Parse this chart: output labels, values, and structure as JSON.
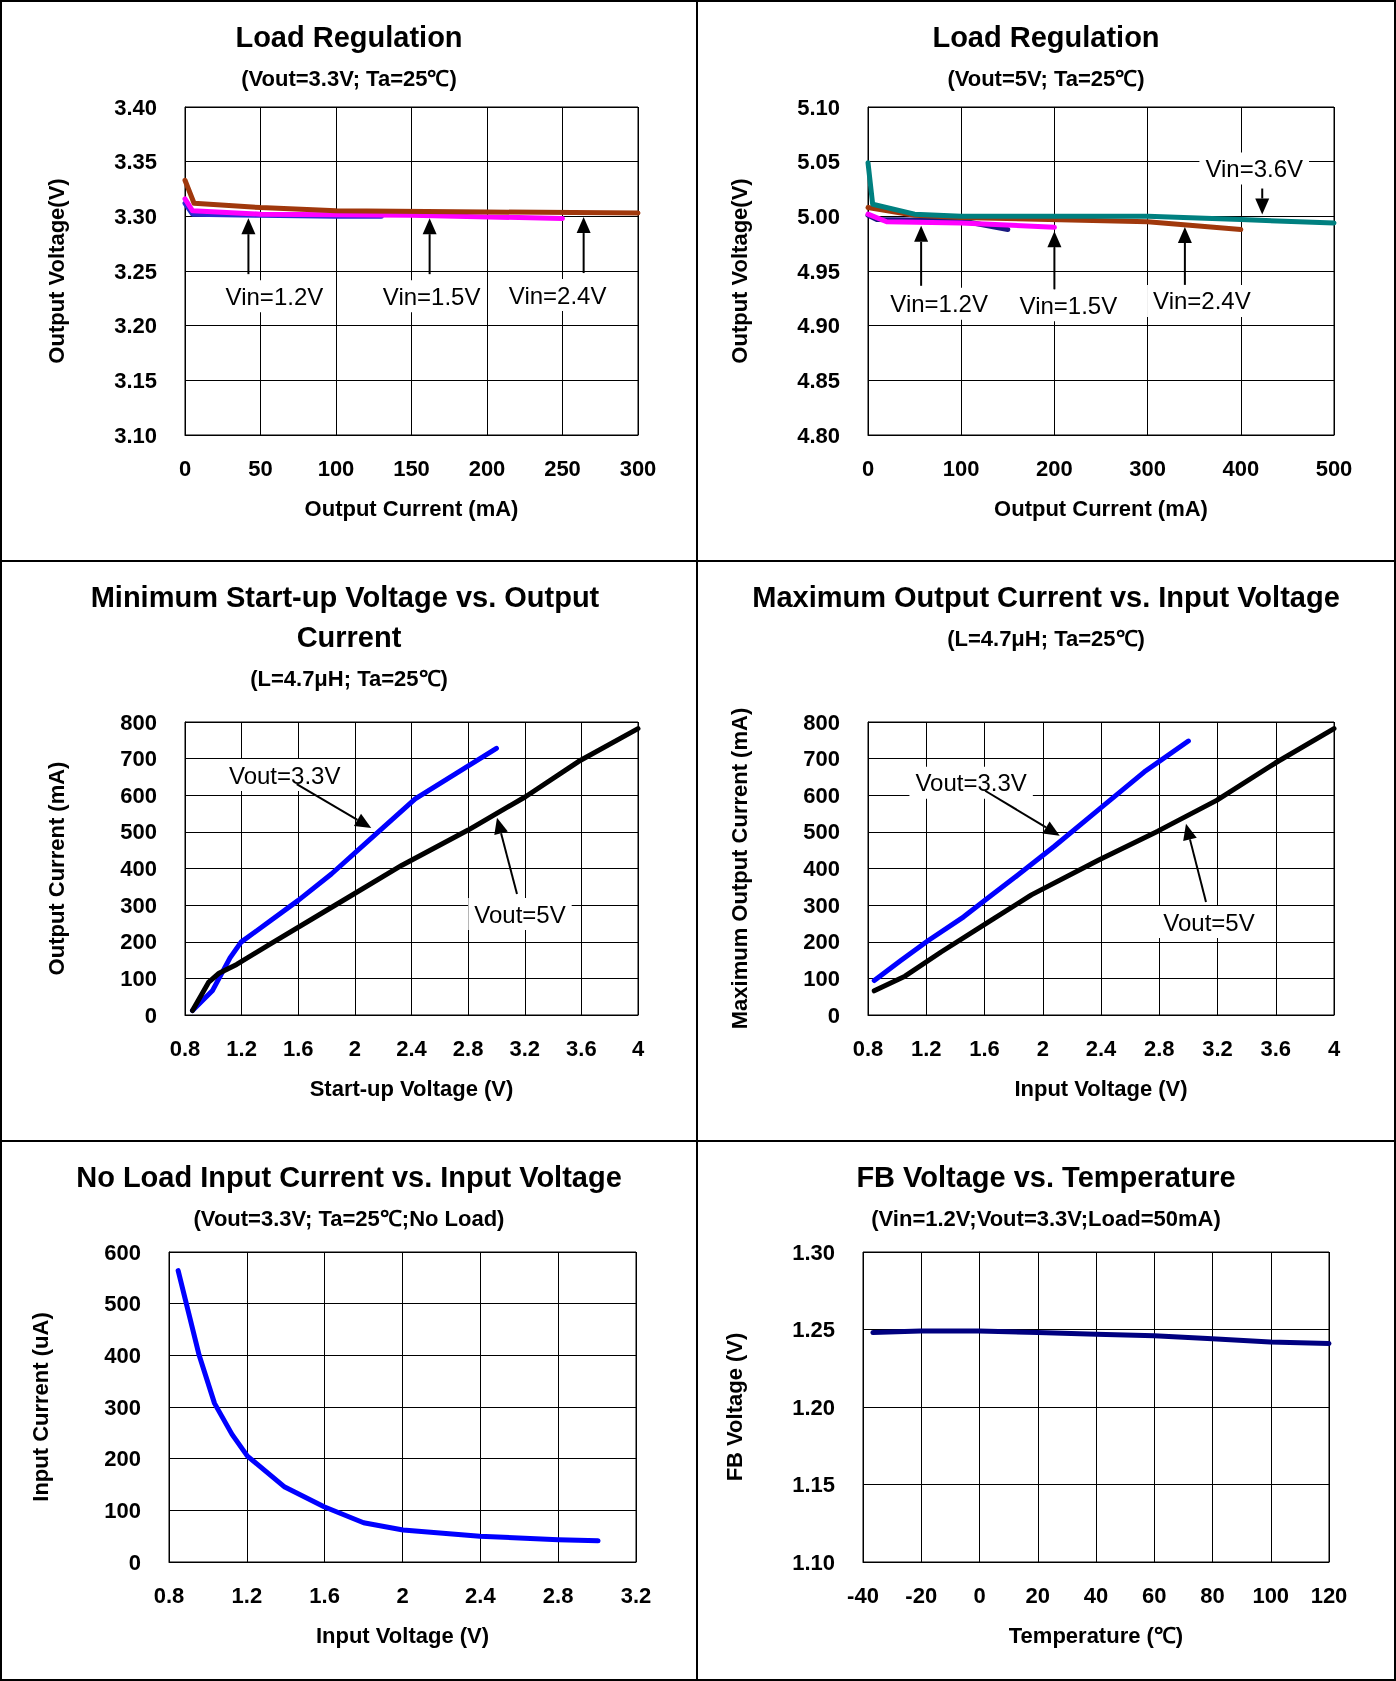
{
  "chart_data": [
    {
      "type": "line",
      "title": "Load Regulation",
      "subtitle": "(Vout=3.3V; Ta=25℃)",
      "xlabel": "Output Current (mA)",
      "ylabel": "Output Voltage(V)",
      "xlim": [
        0,
        300
      ],
      "xticks": [
        0,
        50,
        100,
        150,
        200,
        250,
        300
      ],
      "ylim": [
        3.1,
        3.4
      ],
      "yticks": [
        {
          "value": 3.1,
          "label": "3.10"
        },
        3.15,
        {
          "value": 3.2,
          "label": "3.20"
        },
        3.25,
        {
          "value": 3.3,
          "label": "3.30"
        },
        3.35,
        {
          "value": 3.4,
          "label": "3.40"
        }
      ],
      "grid": true,
      "marker": "none",
      "series": [
        {
          "color": "#2a2ad0",
          "x": [
            0,
            5,
            50,
            100,
            130
          ],
          "values": [
            3.312,
            3.302,
            3.301,
            3.3,
            3.3
          ]
        },
        {
          "color": "#ff00ff",
          "x": [
            0,
            5,
            50,
            150,
            250
          ],
          "values": [
            3.316,
            3.305,
            3.302,
            3.301,
            3.298
          ]
        },
        {
          "color": "#a0380c",
          "x": [
            0,
            6,
            50,
            100,
            200,
            300
          ],
          "values": [
            3.333,
            3.312,
            3.308,
            3.305,
            3.304,
            3.303
          ]
        }
      ],
      "annotations": [
        {
          "text": "Vin=1.2V",
          "x": 42,
          "y": 3.302
        },
        {
          "text": "Vin=1.5V",
          "x": 162,
          "y": 3.302
        },
        {
          "text": "Vin=2.4V",
          "x": 264,
          "y": 3.303
        }
      ]
    },
    {
      "type": "line",
      "title": "Load Regulation",
      "subtitle": "(Vout=5V; Ta=25℃)",
      "xlabel": "Output Current (mA)",
      "ylabel": "Output Voltage(V)",
      "xlim": [
        0,
        500
      ],
      "xticks": [
        0,
        100,
        200,
        300,
        400,
        500
      ],
      "ylim": [
        4.8,
        5.1
      ],
      "yticks": [
        {
          "value": 4.8,
          "label": "4.80"
        },
        4.85,
        {
          "value": 4.9,
          "label": "4.90"
        },
        4.95,
        {
          "value": 5,
          "label": "5.00"
        },
        5.05,
        {
          "value": 5.1,
          "label": "5.10"
        }
      ],
      "grid": true,
      "marker": "none",
      "series": [
        {
          "color": "#1a1a80",
          "x": [
            0,
            10,
            100,
            150
          ],
          "values": [
            5.001,
            4.997,
            4.996,
            4.988
          ]
        },
        {
          "color": "#ff00ff",
          "x": [
            0,
            20,
            100,
            200
          ],
          "values": [
            5.002,
            4.995,
            4.994,
            4.99
          ]
        },
        {
          "color": "#a0380c",
          "x": [
            0,
            50,
            100,
            300,
            400
          ],
          "values": [
            5.008,
            5.001,
            4.999,
            4.995,
            4.988
          ]
        },
        {
          "color": "#008080",
          "x": [
            0,
            5,
            50,
            100,
            300,
            400,
            500
          ],
          "values": [
            5.049,
            5.011,
            5.002,
            5.0,
            5.0,
            4.997,
            4.994
          ]
        }
      ],
      "annotations": [
        {
          "text": "Vin=1.2V",
          "x": 57,
          "y": 4.995
        },
        {
          "text": "Vin=1.5V",
          "x": 200,
          "y": 4.99
        },
        {
          "text": "Vin=2.4V",
          "x": 340,
          "y": 4.994
        },
        {
          "text": "Vin=3.6V",
          "x": 423,
          "y": 4.998
        }
      ]
    },
    {
      "type": "line",
      "title": "Minimum Start-up Voltage vs. Output Current",
      "subtitle": "(L=4.7μH; Ta=25℃)",
      "xlabel": "Start-up Voltage (V)",
      "ylabel": "Output Current (mA)",
      "xlim": [
        0.8,
        4
      ],
      "xticks": [
        0.8,
        1.2,
        1.6,
        2,
        2.4,
        2.8,
        3.2,
        3.6,
        4
      ],
      "ylim": [
        0,
        800
      ],
      "yticks": [
        0,
        100,
        200,
        300,
        400,
        500,
        600,
        700,
        800
      ],
      "grid": true,
      "marker": "none",
      "series": [
        {
          "color": "#0000ff",
          "x": [
            0.853,
            0.993,
            1.118,
            1.196,
            1.367,
            1.6,
            1.834,
            2.146,
            2.426,
            3.0
          ],
          "values": [
            12,
            66,
            156,
            199,
            247,
            313,
            385,
            493,
            590,
            728
          ]
        },
        {
          "color": "#000000",
          "x": [
            0.853,
            0.968,
            1.04,
            1.165,
            1.398,
            1.866,
            2.333,
            2.8,
            3.205,
            3.579,
            4.0
          ],
          "values": [
            12,
            90,
            114,
            138,
            193,
            301,
            409,
            505,
            596,
            692,
            782
          ]
        }
      ],
      "annotations": [
        {
          "text": "Vout=3.3V",
          "x": 2.14,
          "y": 505
        },
        "Vout=5V"
      ]
    },
    {
      "type": "line",
      "title": "Maximum Output Current vs. Input Voltage",
      "subtitle": "(L=4.7μH; Ta=25℃)",
      "xlabel": "Input Voltage (V)",
      "ylabel": "Maximum Output Current (mA)",
      "xlim": [
        0.8,
        4
      ],
      "xticks": [
        0.8,
        1.2,
        1.6,
        2,
        2.4,
        2.8,
        3.2,
        3.6,
        4
      ],
      "ylim": [
        0,
        800
      ],
      "yticks": [
        0,
        100,
        200,
        300,
        400,
        500,
        600,
        700,
        800
      ],
      "grid": true,
      "marker": "none",
      "series": [
        {
          "color": "#0000ff",
          "x": [
            0.843,
            1.023,
            1.209,
            1.457,
            1.612,
            1.829,
            2.078,
            2.388,
            2.698,
            3.0
          ],
          "values": [
            94,
            148,
            202,
            268,
            316,
            382,
            460,
            562,
            664,
            748
          ]
        },
        {
          "color": "#000000",
          "x": [
            0.843,
            1.054,
            1.302,
            1.612,
            1.922,
            2.388,
            2.79,
            3.194,
            3.597,
            4.0
          ],
          "values": [
            66,
            106,
            172,
            250,
            328,
            424,
            502,
            586,
            688,
            782
          ]
        }
      ],
      "annotations": [
        {
          "text": "Vout=3.3V",
          "x": 2.14,
          "y": 484
        },
        "Vout=5V"
      ]
    },
    {
      "type": "line",
      "title": "No Load Input Current vs. Input Voltage",
      "subtitle": "(Vout=3.3V; Ta=25℃;No Load)",
      "xlabel": "Input Voltage (V)",
      "ylabel": "Input Current (uA)",
      "xlim": [
        0.8,
        3.2
      ],
      "xticks": [
        0.8,
        1.2,
        1.6,
        2,
        2.4,
        2.8,
        3.2
      ],
      "ylim": [
        0,
        600
      ],
      "yticks": [
        0,
        100,
        200,
        300,
        400,
        500,
        600
      ],
      "grid": true,
      "marker": "none",
      "series": [
        {
          "color": "#0000ff",
          "x": [
            0.847,
            0.899,
            0.955,
            1.034,
            1.124,
            1.203,
            1.395,
            1.597,
            1.8,
            2.003,
            2.397,
            2.8,
            3.005
          ],
          "values": [
            564,
            485,
            400,
            307,
            247,
            205,
            145,
            107,
            76,
            62,
            50,
            43,
            41
          ]
        }
      ]
    },
    {
      "type": "line",
      "title": "FB Voltage vs. Temperature",
      "subtitle": "(Vin=1.2V;Vout=3.3V;Load=50mA)",
      "xlabel": "Temperature (℃)",
      "ylabel": "FB Voltage (V)",
      "xlim": [
        -40,
        120
      ],
      "xticks": [
        -40,
        -20,
        0,
        20,
        40,
        60,
        80,
        100,
        120
      ],
      "ylim": [
        1.1,
        1.3
      ],
      "yticks": [
        {
          "value": 1.1,
          "label": "1.10"
        },
        1.15,
        {
          "value": 1.2,
          "label": "1.20"
        },
        1.25,
        {
          "value": 1.3,
          "label": "1.30"
        }
      ],
      "grid": true,
      "marker": "none",
      "series": [
        {
          "color": "#000080",
          "x": [
            -36.6,
            -20.3,
            -0.2,
            20,
            40.1,
            60,
            79.9,
            99.8,
            120
          ],
          "values": [
            1.248,
            1.249,
            1.249,
            1.248,
            1.247,
            1.246,
            1.244,
            1.242,
            1.241
          ]
        }
      ]
    }
  ]
}
